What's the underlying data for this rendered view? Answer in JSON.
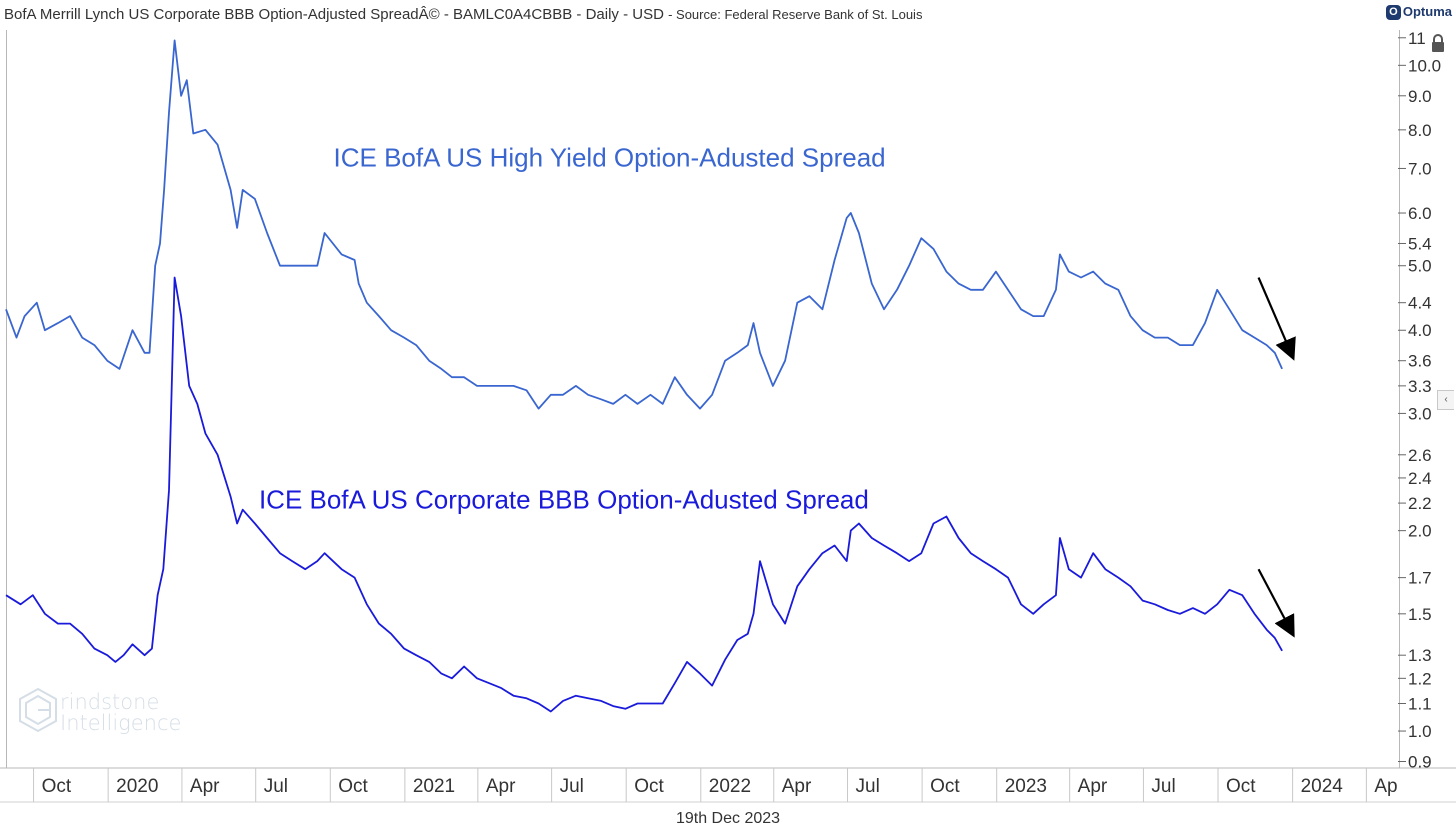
{
  "header": {
    "title": "BofA Merrill Lynch US Corporate BBB Option-Adjusted SpreadÂ© - BAMLC0A4CBBB - Daily - USD",
    "source": "- Source: Federal Reserve Bank of St. Louis",
    "logo_text": "Optuma"
  },
  "footer": {
    "date": "19th Dec 2023"
  },
  "watermark": {
    "line1": "rindstone",
    "line2": "Intelligence"
  },
  "colors": {
    "hy": "#3a66d0",
    "bbb": "#1a1adb",
    "arrow": "#000000",
    "axis": "#666666"
  },
  "chart_data": {
    "type": "line",
    "scale": "log",
    "ylim": [
      0.88,
      11.3
    ],
    "xlim": [
      "2019-08-28",
      "2024-05-10"
    ],
    "yticks": [
      0.9,
      1.0,
      1.1,
      1.2,
      1.3,
      1.5,
      1.7,
      2.0,
      2.2,
      2.4,
      2.6,
      3.0,
      3.3,
      3.6,
      4.0,
      4.4,
      5.0,
      5.4,
      6.0,
      7.0,
      8.0,
      9.0,
      10.0,
      11
    ],
    "ytick_labels": [
      "0.9",
      "1.0",
      "1.1",
      "1.2",
      "1.3",
      "1.5",
      "1.7",
      "2.0",
      "2.2",
      "2.4",
      "2.6",
      "3.0",
      "3.3",
      "3.6",
      "4.0",
      "4.4",
      "5.0",
      "5.4",
      "6.0",
      "7.0",
      "8.0",
      "9.0",
      "10.0",
      "11"
    ],
    "xticks": [
      {
        "date": "2019-10-01",
        "label": "Oct"
      },
      {
        "date": "2020-01-01",
        "label": "2020"
      },
      {
        "date": "2020-04-01",
        "label": "Apr"
      },
      {
        "date": "2020-07-01",
        "label": "Jul"
      },
      {
        "date": "2020-10-01",
        "label": "Oct"
      },
      {
        "date": "2021-01-01",
        "label": "2021"
      },
      {
        "date": "2021-04-01",
        "label": "Apr"
      },
      {
        "date": "2021-07-01",
        "label": "Jul"
      },
      {
        "date": "2021-10-01",
        "label": "Oct"
      },
      {
        "date": "2022-01-01",
        "label": "2022"
      },
      {
        "date": "2022-04-01",
        "label": "Apr"
      },
      {
        "date": "2022-07-01",
        "label": "Jul"
      },
      {
        "date": "2022-10-01",
        "label": "Oct"
      },
      {
        "date": "2023-01-01",
        "label": "2023"
      },
      {
        "date": "2023-04-01",
        "label": "Apr"
      },
      {
        "date": "2023-07-01",
        "label": "Jul"
      },
      {
        "date": "2023-10-01",
        "label": "Oct"
      },
      {
        "date": "2024-01-01",
        "label": "2024"
      },
      {
        "date": "2024-04-01",
        "label": "Ap"
      }
    ],
    "series": [
      {
        "name": "ICE BofA US High Yield Option-Adusted Spread",
        "x": [
          "2019-08-28",
          "2019-09-10",
          "2019-09-20",
          "2019-10-05",
          "2019-10-15",
          "2019-10-31",
          "2019-11-15",
          "2019-11-30",
          "2019-12-15",
          "2019-12-31",
          "2020-01-15",
          "2020-01-31",
          "2020-02-15",
          "2020-02-21",
          "2020-02-28",
          "2020-03-05",
          "2020-03-10",
          "2020-03-16",
          "2020-03-23",
          "2020-03-31",
          "2020-04-07",
          "2020-04-15",
          "2020-04-30",
          "2020-05-15",
          "2020-05-31",
          "2020-06-08",
          "2020-06-15",
          "2020-06-30",
          "2020-07-15",
          "2020-07-31",
          "2020-08-15",
          "2020-08-31",
          "2020-09-15",
          "2020-09-24",
          "2020-10-15",
          "2020-10-31",
          "2020-11-05",
          "2020-11-15",
          "2020-11-30",
          "2020-12-15",
          "2020-12-31",
          "2021-01-15",
          "2021-01-31",
          "2021-02-15",
          "2021-02-28",
          "2021-03-15",
          "2021-03-31",
          "2021-04-15",
          "2021-04-30",
          "2021-05-15",
          "2021-05-31",
          "2021-06-15",
          "2021-06-30",
          "2021-07-15",
          "2021-07-31",
          "2021-08-15",
          "2021-08-31",
          "2021-09-15",
          "2021-09-30",
          "2021-10-15",
          "2021-10-31",
          "2021-11-15",
          "2021-11-30",
          "2021-12-15",
          "2021-12-31",
          "2022-01-15",
          "2022-01-31",
          "2022-02-15",
          "2022-02-28",
          "2022-03-07",
          "2022-03-15",
          "2022-03-31",
          "2022-04-15",
          "2022-04-30",
          "2022-05-15",
          "2022-05-31",
          "2022-06-15",
          "2022-06-30",
          "2022-07-05",
          "2022-07-15",
          "2022-07-31",
          "2022-08-15",
          "2022-08-31",
          "2022-09-15",
          "2022-09-30",
          "2022-10-15",
          "2022-10-31",
          "2022-11-15",
          "2022-11-30",
          "2022-12-15",
          "2022-12-31",
          "2023-01-15",
          "2023-01-31",
          "2023-02-15",
          "2023-02-28",
          "2023-03-15",
          "2023-03-20",
          "2023-03-31",
          "2023-04-15",
          "2023-04-30",
          "2023-05-15",
          "2023-05-31",
          "2023-06-15",
          "2023-06-30",
          "2023-07-15",
          "2023-07-31",
          "2023-08-15",
          "2023-08-31",
          "2023-09-15",
          "2023-09-30",
          "2023-10-15",
          "2023-10-31",
          "2023-11-15",
          "2023-11-30",
          "2023-12-10",
          "2023-12-19"
        ],
        "values": [
          4.3,
          3.9,
          4.2,
          4.4,
          4.0,
          4.1,
          4.2,
          3.9,
          3.8,
          3.6,
          3.5,
          4.0,
          3.7,
          3.7,
          5.0,
          5.4,
          6.5,
          8.5,
          10.9,
          9.0,
          9.5,
          7.9,
          8.0,
          7.6,
          6.5,
          5.7,
          6.5,
          6.3,
          5.6,
          5.0,
          5.0,
          5.0,
          5.0,
          5.6,
          5.2,
          5.1,
          4.7,
          4.4,
          4.2,
          4.0,
          3.9,
          3.8,
          3.6,
          3.5,
          3.4,
          3.4,
          3.3,
          3.3,
          3.3,
          3.3,
          3.25,
          3.05,
          3.2,
          3.2,
          3.3,
          3.2,
          3.15,
          3.1,
          3.2,
          3.1,
          3.2,
          3.1,
          3.4,
          3.2,
          3.05,
          3.2,
          3.6,
          3.7,
          3.8,
          4.1,
          3.7,
          3.3,
          3.6,
          4.4,
          4.5,
          4.3,
          5.1,
          5.9,
          6.0,
          5.6,
          4.7,
          4.3,
          4.6,
          5.0,
          5.5,
          5.3,
          4.9,
          4.7,
          4.6,
          4.6,
          4.9,
          4.6,
          4.3,
          4.2,
          4.2,
          4.6,
          5.2,
          4.9,
          4.8,
          4.9,
          4.7,
          4.6,
          4.2,
          4.0,
          3.9,
          3.9,
          3.8,
          3.8,
          4.1,
          4.6,
          4.3,
          4.0,
          3.9,
          3.8,
          3.7,
          3.5
        ]
      },
      {
        "name": "ICE BofA US Corporate BBB Option-Adusted Spread",
        "x": [
          "2019-08-28",
          "2019-09-15",
          "2019-09-30",
          "2019-10-15",
          "2019-10-31",
          "2019-11-15",
          "2019-11-30",
          "2019-12-15",
          "2019-12-31",
          "2020-01-10",
          "2020-01-20",
          "2020-01-31",
          "2020-02-15",
          "2020-02-24",
          "2020-03-02",
          "2020-03-09",
          "2020-03-16",
          "2020-03-23",
          "2020-03-31",
          "2020-04-10",
          "2020-04-20",
          "2020-04-30",
          "2020-05-15",
          "2020-05-31",
          "2020-06-08",
          "2020-06-15",
          "2020-06-30",
          "2020-07-15",
          "2020-07-31",
          "2020-08-15",
          "2020-08-31",
          "2020-09-15",
          "2020-09-24",
          "2020-10-15",
          "2020-10-31",
          "2020-11-15",
          "2020-11-30",
          "2020-12-15",
          "2020-12-31",
          "2021-01-15",
          "2021-01-31",
          "2021-02-15",
          "2021-02-28",
          "2021-03-15",
          "2021-03-31",
          "2021-04-15",
          "2021-04-30",
          "2021-05-15",
          "2021-05-31",
          "2021-06-15",
          "2021-06-30",
          "2021-07-15",
          "2021-07-31",
          "2021-08-15",
          "2021-08-31",
          "2021-09-15",
          "2021-09-30",
          "2021-10-15",
          "2021-10-31",
          "2021-11-15",
          "2021-11-30",
          "2021-12-15",
          "2021-12-31",
          "2022-01-15",
          "2022-01-31",
          "2022-02-15",
          "2022-02-28",
          "2022-03-07",
          "2022-03-15",
          "2022-03-31",
          "2022-04-15",
          "2022-04-30",
          "2022-05-15",
          "2022-05-31",
          "2022-06-15",
          "2022-06-30",
          "2022-07-05",
          "2022-07-15",
          "2022-07-31",
          "2022-08-15",
          "2022-08-31",
          "2022-09-15",
          "2022-09-30",
          "2022-10-15",
          "2022-10-31",
          "2022-11-15",
          "2022-11-30",
          "2022-12-15",
          "2022-12-31",
          "2023-01-15",
          "2023-01-31",
          "2023-02-15",
          "2023-02-28",
          "2023-03-15",
          "2023-03-20",
          "2023-03-31",
          "2023-04-15",
          "2023-04-30",
          "2023-05-15",
          "2023-05-31",
          "2023-06-15",
          "2023-06-30",
          "2023-07-15",
          "2023-07-31",
          "2023-08-15",
          "2023-08-31",
          "2023-09-15",
          "2023-09-30",
          "2023-10-15",
          "2023-10-31",
          "2023-11-15",
          "2023-11-30",
          "2023-12-10",
          "2023-12-19"
        ],
        "values": [
          1.6,
          1.55,
          1.6,
          1.5,
          1.45,
          1.45,
          1.4,
          1.33,
          1.3,
          1.27,
          1.3,
          1.35,
          1.3,
          1.33,
          1.6,
          1.75,
          2.3,
          4.8,
          4.2,
          3.3,
          3.1,
          2.8,
          2.6,
          2.25,
          2.05,
          2.15,
          2.05,
          1.95,
          1.85,
          1.8,
          1.75,
          1.8,
          1.85,
          1.75,
          1.7,
          1.55,
          1.45,
          1.4,
          1.33,
          1.3,
          1.27,
          1.22,
          1.2,
          1.25,
          1.2,
          1.18,
          1.16,
          1.13,
          1.12,
          1.1,
          1.07,
          1.11,
          1.13,
          1.12,
          1.11,
          1.09,
          1.08,
          1.1,
          1.1,
          1.1,
          1.18,
          1.27,
          1.22,
          1.17,
          1.28,
          1.37,
          1.4,
          1.5,
          1.8,
          1.55,
          1.45,
          1.65,
          1.75,
          1.85,
          1.9,
          1.8,
          2.0,
          2.05,
          1.95,
          1.9,
          1.85,
          1.8,
          1.85,
          2.05,
          2.1,
          1.95,
          1.85,
          1.8,
          1.75,
          1.7,
          1.55,
          1.5,
          1.55,
          1.6,
          1.95,
          1.75,
          1.7,
          1.85,
          1.75,
          1.7,
          1.65,
          1.57,
          1.55,
          1.52,
          1.5,
          1.53,
          1.5,
          1.55,
          1.63,
          1.6,
          1.5,
          1.42,
          1.38,
          1.32
        ]
      }
    ],
    "annotations": [
      {
        "type": "text",
        "text": "ICE BofA US High Yield Option-Adusted Spread",
        "x": "2020-10-05",
        "y": 7.05,
        "color": "#3a66d0"
      },
      {
        "type": "text",
        "text": "ICE BofA US Corporate BBB Option-Adusted Spread",
        "x": "2020-07-05",
        "y": 2.16,
        "color": "#1a1adb"
      },
      {
        "type": "arrow",
        "from": [
          "2023-11-20",
          4.8
        ],
        "to": [
          "2024-01-01",
          3.65
        ]
      },
      {
        "type": "arrow",
        "from": [
          "2023-11-20",
          1.75
        ],
        "to": [
          "2024-01-01",
          1.4
        ]
      }
    ]
  }
}
